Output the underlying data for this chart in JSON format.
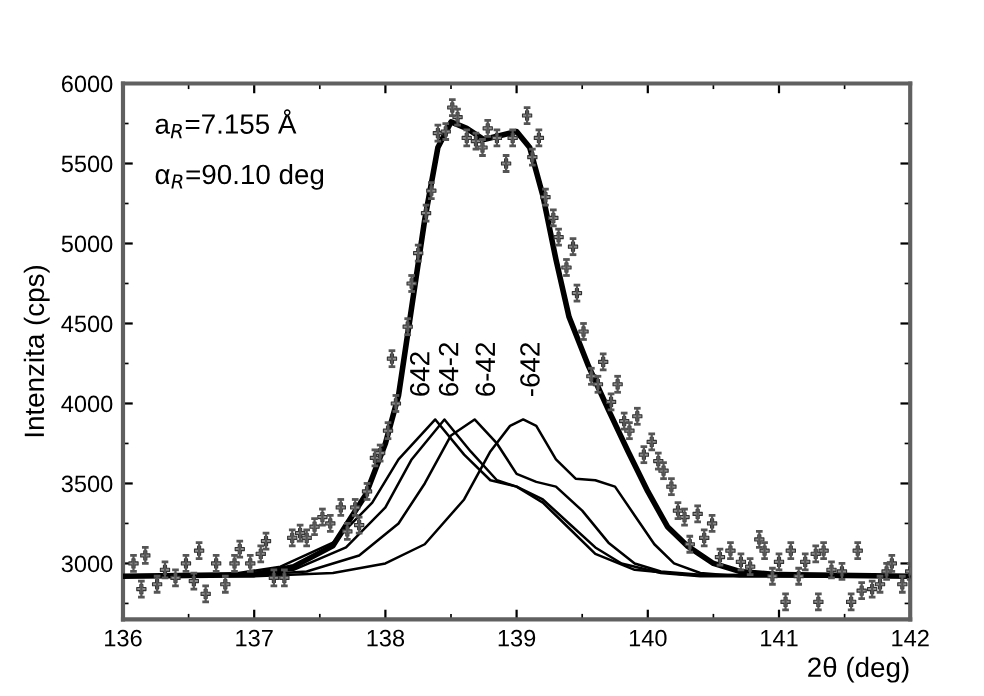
{
  "chart_data": {
    "type": "line",
    "xlabel": "2θ (deg)",
    "ylabel": "Intenzita (cps)",
    "xlim": [
      136,
      142
    ],
    "ylim": [
      2650,
      6000
    ],
    "xticks": [
      136,
      137,
      138,
      139,
      140,
      141,
      142
    ],
    "yticks": [
      3000,
      3500,
      4000,
      4500,
      5000,
      5500,
      6000
    ],
    "grid": false,
    "legend": false,
    "annotations": [
      "a$_{R}$=7.155 Å",
      "α$_{R}$=90.10 deg",
      {
        "text": "642",
        "x": 138.28,
        "y": 3900
      },
      {
        "text": "64-2",
        "x": 138.5,
        "y": 3900
      },
      {
        "text": "6-42",
        "x": 138.78,
        "y": 3900
      },
      {
        "text": "-642",
        "x": 139.12,
        "y": 3900
      }
    ],
    "series": [
      {
        "color": "#000000",
        "x": [
          136,
          137,
          137.3,
          137.6,
          137.85,
          138.0,
          138.1,
          138.2,
          138.3,
          138.4,
          138.5,
          138.62,
          138.75,
          138.9,
          139.0,
          139.1,
          139.2,
          139.3,
          139.4,
          139.55,
          139.7,
          139.85,
          140.0,
          140.15,
          140.3,
          140.5,
          140.7,
          141,
          142
        ],
        "values": [
          2920,
          2930,
          2980,
          3110,
          3430,
          3750,
          4050,
          4600,
          5150,
          5600,
          5760,
          5720,
          5650,
          5680,
          5700,
          5600,
          5300,
          4900,
          4540,
          4230,
          3960,
          3700,
          3450,
          3230,
          3110,
          3000,
          2950,
          2930,
          2920
        ]
      },
      {
        "color": "#000000",
        "x": [
          136,
          136.8,
          137.2,
          137.6,
          137.9,
          138.1,
          138.38,
          138.6,
          138.8,
          139.0,
          139.2,
          139.4,
          139.6,
          139.9,
          140.3,
          142
        ],
        "values": [
          2920,
          2930,
          2980,
          3130,
          3380,
          3650,
          3900,
          3680,
          3520,
          3480,
          3380,
          3220,
          3060,
          2960,
          2930,
          2920
        ]
      },
      {
        "color": "#000000",
        "x": [
          136,
          136.8,
          137.3,
          137.7,
          138.0,
          138.2,
          138.45,
          138.65,
          138.85,
          139.0,
          139.2,
          139.4,
          139.6,
          139.8,
          140.1,
          140.4,
          142
        ],
        "values": [
          2920,
          2930,
          2960,
          3100,
          3350,
          3650,
          3900,
          3700,
          3520,
          3480,
          3400,
          3250,
          3100,
          3000,
          2940,
          2920,
          2920
        ]
      },
      {
        "color": "#000000",
        "x": [
          136,
          137,
          137.4,
          137.8,
          138.1,
          138.3,
          138.5,
          138.68,
          138.85,
          139.0,
          139.15,
          139.3,
          139.5,
          139.7,
          139.9,
          140.1,
          140.4,
          142
        ],
        "values": [
          2920,
          2930,
          2950,
          3050,
          3250,
          3500,
          3800,
          3900,
          3750,
          3560,
          3510,
          3480,
          3330,
          3130,
          3000,
          2950,
          2930,
          2920
        ]
      },
      {
        "color": "#000000",
        "x": [
          136,
          137,
          137.6,
          138.0,
          138.3,
          138.6,
          138.8,
          138.95,
          139.05,
          139.15,
          139.3,
          139.45,
          139.6,
          139.75,
          139.9,
          140.05,
          140.2,
          140.4,
          140.7,
          142
        ],
        "values": [
          2920,
          2920,
          2940,
          3000,
          3120,
          3400,
          3700,
          3860,
          3900,
          3860,
          3650,
          3530,
          3520,
          3480,
          3300,
          3120,
          3000,
          2940,
          2920,
          2920
        ]
      },
      {
        "type": "scatter",
        "color": "#8c8c8c",
        "marker": "cross",
        "errors": [
          50,
          50,
          50,
          50,
          50,
          50,
          50,
          50,
          50,
          50,
          50,
          50,
          50,
          50,
          50,
          50,
          50,
          50,
          50,
          50,
          50,
          50,
          50,
          50,
          50,
          50,
          50,
          50,
          50,
          50,
          50,
          50,
          50,
          50,
          50,
          50,
          50,
          50,
          50,
          50,
          50,
          50,
          50,
          50,
          50,
          50,
          50,
          50,
          50,
          50,
          50,
          50,
          50,
          50,
          50,
          50,
          50,
          50,
          50,
          50,
          50,
          50,
          50,
          50,
          50,
          50,
          50,
          50,
          50,
          50,
          50,
          50,
          50,
          50,
          50,
          50,
          50,
          50,
          50,
          50,
          50,
          50,
          50,
          50,
          50,
          50,
          50,
          50,
          50,
          50,
          50,
          50,
          50,
          50,
          50,
          50,
          50,
          50,
          50,
          50,
          50,
          50,
          50,
          50,
          50,
          50
        ],
        "x": [
          136.08,
          136.14,
          136.17,
          136.26,
          136.32,
          136.4,
          136.48,
          136.54,
          136.58,
          136.63,
          136.71,
          136.78,
          136.85,
          136.89,
          136.97,
          137.05,
          137.09,
          137.15,
          137.23,
          137.29,
          137.35,
          137.4,
          137.46,
          137.52,
          137.58,
          137.66,
          137.71,
          137.77,
          137.8,
          137.86,
          137.92,
          137.96,
          138.02,
          138.05,
          138.08,
          138.17,
          138.2,
          138.25,
          138.31,
          138.35,
          138.4,
          138.46,
          138.51,
          138.55,
          138.62,
          138.69,
          138.74,
          138.78,
          138.85,
          138.92,
          138.97,
          139.08,
          139.12,
          139.17,
          139.22,
          139.28,
          139.32,
          139.38,
          139.43,
          139.46,
          139.51,
          139.57,
          139.62,
          139.66,
          139.72,
          139.77,
          139.82,
          139.86,
          139.92,
          139.97,
          140.03,
          140.08,
          140.12,
          140.18,
          140.23,
          140.28,
          140.32,
          140.38,
          140.43,
          140.49,
          140.55,
          140.63,
          140.71,
          140.78,
          140.85,
          140.89,
          140.95,
          141.0,
          141.05,
          141.09,
          141.15,
          141.2,
          141.28,
          141.3,
          141.34,
          141.4,
          141.48,
          141.55,
          141.6,
          141.63,
          141.71,
          141.77,
          141.82,
          141.86,
          141.94,
          142.0
        ],
        "values": [
          3000,
          2840,
          3050,
          2870,
          2960,
          2910,
          3000,
          2890,
          3080,
          2810,
          3000,
          2870,
          3000,
          3090,
          3000,
          3060,
          3140,
          2910,
          2910,
          3160,
          3190,
          3160,
          3230,
          3290,
          3250,
          3350,
          3200,
          3350,
          3240,
          3450,
          3660,
          3690,
          3830,
          4280,
          4000,
          4480,
          4750,
          4940,
          5190,
          5330,
          5690,
          5700,
          5850,
          5790,
          5660,
          5640,
          5600,
          5720,
          5660,
          5500,
          5660,
          5800,
          5540,
          5660,
          5290,
          5160,
          5040,
          4850,
          4980,
          4690,
          4450,
          4170,
          4120,
          4260,
          4010,
          4120,
          3890,
          3830,
          3920,
          3680,
          3760,
          3640,
          3580,
          3480,
          3330,
          3290,
          3120,
          3310,
          3160,
          3250,
          3040,
          3080,
          3010,
          2980,
          3150,
          3080,
          2920,
          3010,
          2760,
          3080,
          2920,
          3010,
          3060,
          2760,
          3080,
          2960,
          2950,
          2760,
          3080,
          2830,
          2840,
          2870,
          2950,
          3000,
          2870,
          2950
        ]
      }
    ]
  }
}
